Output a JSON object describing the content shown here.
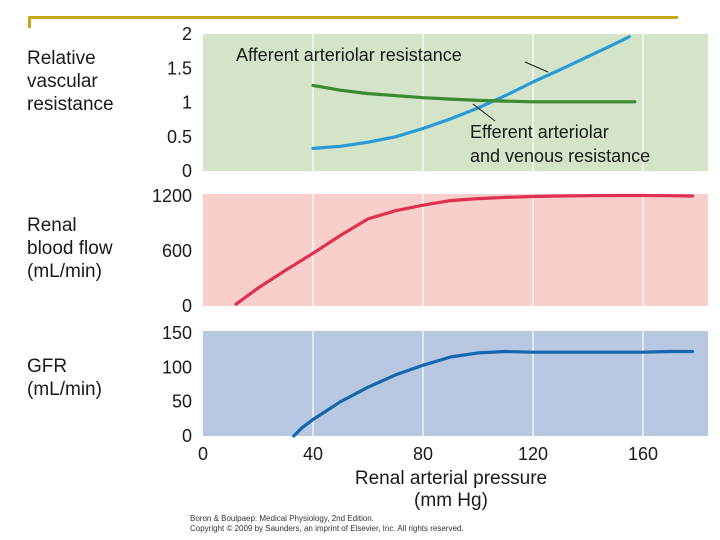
{
  "chart_data": [
    {
      "type": "line",
      "ylabel": [
        "Relative",
        "vascular",
        "resistance"
      ],
      "ylim": [
        0,
        2
      ],
      "yticks": [
        "0",
        "0.5",
        "1",
        "1.5",
        "2"
      ],
      "xlim": [
        0,
        180
      ],
      "background": "#d3e4c9",
      "series": [
        {
          "name": "Afferent arteriolar resistance",
          "color": "#2a9ad6",
          "x": [
            40,
            50,
            60,
            70,
            80,
            90,
            100,
            110,
            120,
            130,
            140,
            150,
            155
          ],
          "y": [
            0.33,
            0.36,
            0.42,
            0.5,
            0.62,
            0.76,
            0.92,
            1.1,
            1.3,
            1.48,
            1.67,
            1.86,
            1.96
          ]
        },
        {
          "name": "Efferent arteriolar and venous resistance",
          "color": "#3a8a30",
          "x": [
            40,
            50,
            60,
            70,
            80,
            90,
            100,
            110,
            120,
            130,
            140,
            150,
            157
          ],
          "y": [
            1.25,
            1.18,
            1.13,
            1.1,
            1.07,
            1.05,
            1.03,
            1.02,
            1.01,
            1.01,
            1.01,
            1.01,
            1.01
          ]
        }
      ],
      "annotations": [
        {
          "lines": [
            "Afferent arteriolar resistance"
          ]
        },
        {
          "lines": [
            "Efferent arteriolar",
            "and venous resistance"
          ]
        }
      ]
    },
    {
      "type": "line",
      "ylabel": [
        "Renal",
        "blood flow",
        "(mL/min)"
      ],
      "ylim": [
        0,
        1200
      ],
      "yticks": [
        "0",
        "600",
        "1200"
      ],
      "xlim": [
        0,
        180
      ],
      "background": "#f9cfcb",
      "series": [
        {
          "name": "Renal blood flow",
          "color": "#e03050",
          "x": [
            12,
            20,
            30,
            40,
            50,
            60,
            70,
            80,
            90,
            100,
            110,
            120,
            130,
            140,
            150,
            160,
            170,
            178
          ],
          "y": [
            20,
            195,
            390,
            575,
            770,
            950,
            1040,
            1100,
            1150,
            1172,
            1185,
            1195,
            1200,
            1203,
            1205,
            1205,
            1203,
            1200
          ]
        }
      ]
    },
    {
      "type": "line",
      "ylabel": [
        "GFR",
        "(mL/min)"
      ],
      "ylim": [
        0,
        150
      ],
      "yticks": [
        "0",
        "50",
        "100",
        "150"
      ],
      "xlim": [
        0,
        180
      ],
      "xticks": [
        "0",
        "40",
        "80",
        "120",
        "160"
      ],
      "background": "#b9c8e2",
      "series": [
        {
          "name": "GFR",
          "color": "#1466ae",
          "x": [
            33,
            36,
            40,
            45,
            50,
            60,
            70,
            80,
            90,
            100,
            110,
            120,
            130,
            140,
            150,
            160,
            170,
            178
          ],
          "y": [
            0,
            12,
            24,
            37,
            50,
            71,
            89,
            103,
            115,
            121,
            123,
            122,
            122,
            122,
            122,
            122,
            123,
            123
          ]
        }
      ]
    }
  ],
  "xlabel": [
    "Renal arterial pressure",
    "(mm Hg)"
  ],
  "credit": [
    "Boron & Boulpaep: Medical Physiology, 2nd Edition.",
    "Copyright © 2009 by Saunders, an imprint of Elsevier, Inc. All rights reserved."
  ]
}
